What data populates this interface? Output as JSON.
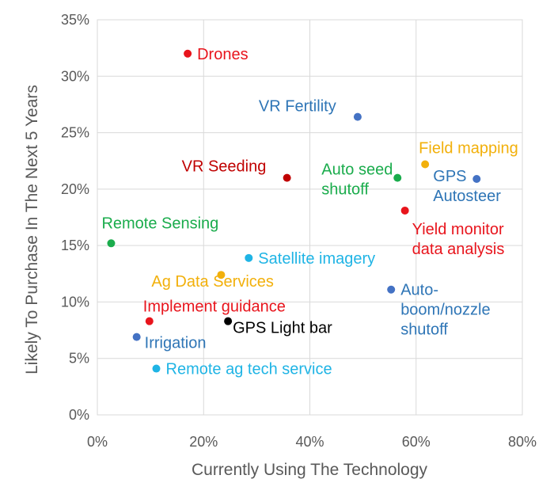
{
  "chart_data": {
    "type": "scatter",
    "xlabel": "Currently Using The Technology",
    "ylabel": "Likely To Purchase In The Next 5 Years",
    "xlim": [
      0,
      0.8
    ],
    "ylim": [
      0,
      0.35
    ],
    "x_ticks": [
      {
        "value": 0.0,
        "label": "0%"
      },
      {
        "value": 0.2,
        "label": "20%"
      },
      {
        "value": 0.4,
        "label": "40%"
      },
      {
        "value": 0.6,
        "label": "60%"
      },
      {
        "value": 0.8,
        "label": "80%"
      }
    ],
    "y_ticks": [
      {
        "value": 0.0,
        "label": "0%"
      },
      {
        "value": 0.05,
        "label": "5%"
      },
      {
        "value": 0.1,
        "label": "10%"
      },
      {
        "value": 0.15,
        "label": "15%"
      },
      {
        "value": 0.2,
        "label": "20%"
      },
      {
        "value": 0.25,
        "label": "25%"
      },
      {
        "value": 0.3,
        "label": "30%"
      },
      {
        "value": 0.35,
        "label": "35%"
      }
    ],
    "grid": true,
    "points": [
      {
        "name": "Drones",
        "label_lines": [
          "Drones"
        ],
        "x": 0.17,
        "y": 0.32,
        "color": "#e8141c",
        "label_side": "right"
      },
      {
        "name": "VR Fertility",
        "label_lines": [
          "VR Fertility"
        ],
        "x": 0.49,
        "y": 0.264,
        "color": "#4472c4",
        "label_text_color": "#2e75b6",
        "label_side": "left-above"
      },
      {
        "name": "VR Seeding",
        "label_lines": [
          "VR Seeding"
        ],
        "x": 0.357,
        "y": 0.21,
        "color": "#c00000",
        "label_side": "left-above"
      },
      {
        "name": "Auto seed shutoff",
        "label_lines": [
          "Auto seed",
          "shutoff"
        ],
        "x": 0.565,
        "y": 0.21,
        "color": "#1aac4c",
        "label_side": "left"
      },
      {
        "name": "Field mapping",
        "label_lines": [
          "Field mapping"
        ],
        "x": 0.617,
        "y": 0.222,
        "color": "#f2b00b",
        "label_side": "above-right"
      },
      {
        "name": "GPS Autosteer",
        "label_lines": [
          "GPS",
          "Autosteer"
        ],
        "x": 0.714,
        "y": 0.209,
        "color": "#4472c4",
        "label_text_color": "#2e75b6",
        "label_side": "left"
      },
      {
        "name": "Yield monitor data analysis",
        "label_lines": [
          "Yield monitor",
          "data analysis"
        ],
        "x": 0.579,
        "y": 0.181,
        "color": "#e8141c",
        "label_side": "below-right"
      },
      {
        "name": "Remote Sensing",
        "label_lines": [
          "Remote Sensing"
        ],
        "x": 0.026,
        "y": 0.152,
        "color": "#1aac4c",
        "label_side": "above"
      },
      {
        "name": "Satellite imagery",
        "label_lines": [
          "Satellite imagery"
        ],
        "x": 0.285,
        "y": 0.139,
        "color": "#1fb4e5",
        "label_side": "right"
      },
      {
        "name": "Ag Data Services",
        "label_lines": [
          "Ag Data Services"
        ],
        "x": 0.233,
        "y": 0.124,
        "color": "#f2b00b",
        "label_side": "below-left"
      },
      {
        "name": "Auto-boom/nozzle shutoff",
        "label_lines": [
          "Auto-",
          "boom/nozzle",
          "shutoff"
        ],
        "x": 0.553,
        "y": 0.111,
        "color": "#4472c4",
        "label_text_color": "#2e75b6",
        "label_side": "right"
      },
      {
        "name": "Implement guidance",
        "label_lines": [
          "Implement guidance"
        ],
        "x": 0.098,
        "y": 0.083,
        "color": "#e8141c",
        "label_side": "above"
      },
      {
        "name": "GPS Light bar",
        "label_lines": [
          "GPS Light bar"
        ],
        "x": 0.246,
        "y": 0.083,
        "color": "#000000",
        "label_side": "below-right"
      },
      {
        "name": "Irrigation",
        "label_lines": [
          "Irrigation"
        ],
        "x": 0.074,
        "y": 0.069,
        "color": "#4472c4",
        "label_text_color": "#2e75b6",
        "label_side": "below-right"
      },
      {
        "name": "Remote ag tech service",
        "label_lines": [
          "Remote ag tech service"
        ],
        "x": 0.111,
        "y": 0.041,
        "color": "#1fb4e5",
        "label_side": "right"
      }
    ]
  }
}
